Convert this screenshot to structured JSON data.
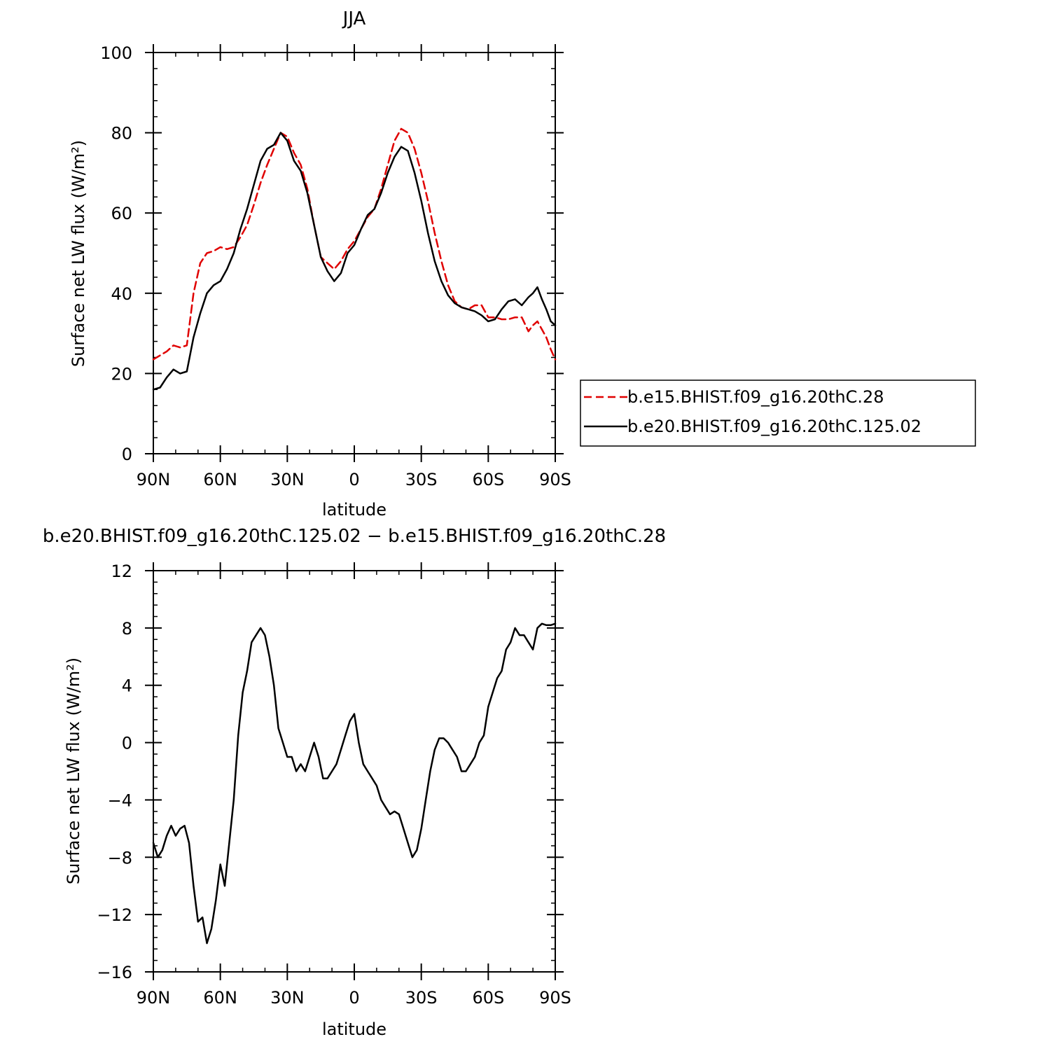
{
  "colors": {
    "series1": "#e00000",
    "series2": "#000000",
    "axis": "#000000"
  },
  "chart_data": [
    {
      "type": "line",
      "title": "JJA",
      "xlabel": "latitude",
      "ylabel": "Surface net LW flux (W/m²)",
      "xlim": [
        90,
        -90
      ],
      "ylim": [
        0,
        100
      ],
      "x_ticks": [
        90,
        60,
        30,
        0,
        -30,
        -60,
        -90
      ],
      "x_tick_labels": [
        "90N",
        "60N",
        "30N",
        "0",
        "30S",
        "60S",
        "90S"
      ],
      "y_ticks": [
        0,
        20,
        40,
        60,
        80,
        100
      ],
      "y_tick_labels": [
        "0",
        "20",
        "40",
        "60",
        "80",
        "100"
      ],
      "legend": {
        "placement": "right",
        "entries": [
          "b.e15.BHIST.f09_g16.20thC.28",
          "b.e20.BHIST.f09_g16.20thC.125.02"
        ]
      },
      "series": [
        {
          "name": "b.e15.BHIST.f09_g16.20thC.28",
          "style": "dashed",
          "color": "#e00000",
          "x": [
            90,
            87,
            84,
            81,
            78,
            75,
            72,
            69,
            66,
            63,
            60,
            57,
            54,
            51,
            48,
            45,
            42,
            39,
            36,
            33,
            30,
            27,
            24,
            21,
            18,
            15,
            12,
            9,
            6,
            3,
            0,
            -3,
            -6,
            -9,
            -12,
            -15,
            -18,
            -21,
            -24,
            -27,
            -30,
            -33,
            -36,
            -39,
            -42,
            -45,
            -48,
            -51,
            -54,
            -57,
            -60,
            -63,
            -66,
            -69,
            -72,
            -75,
            -78,
            -80,
            -82,
            -84,
            -86,
            -88,
            -90
          ],
          "values": [
            23.5,
            24.5,
            25.5,
            27,
            26.5,
            27,
            40,
            47.5,
            50,
            50.5,
            51.5,
            51,
            51.5,
            54,
            57,
            62,
            67.5,
            72,
            76,
            80,
            79,
            75,
            72,
            66,
            57,
            49,
            47.5,
            46,
            48,
            51,
            53,
            56,
            59,
            61,
            66,
            72,
            78,
            81,
            80,
            76,
            70,
            63,
            55,
            48,
            42,
            38,
            36.5,
            36,
            37,
            37,
            34,
            34,
            33.5,
            33.5,
            34,
            34,
            30.5,
            32,
            33,
            31,
            29,
            26,
            23.5
          ]
        },
        {
          "name": "b.e20.BHIST.f09_g16.20thC.125.02",
          "style": "solid",
          "color": "#000000",
          "x": [
            90,
            87,
            84,
            81,
            78,
            75,
            72,
            69,
            66,
            63,
            60,
            57,
            54,
            51,
            48,
            45,
            42,
            39,
            36,
            33,
            30,
            27,
            24,
            21,
            18,
            15,
            12,
            9,
            6,
            3,
            0,
            -3,
            -6,
            -9,
            -12,
            -15,
            -18,
            -21,
            -24,
            -27,
            -30,
            -33,
            -36,
            -39,
            -42,
            -45,
            -48,
            -51,
            -54,
            -57,
            -60,
            -63,
            -66,
            -69,
            -72,
            -75,
            -78,
            -80,
            -82,
            -84,
            -86,
            -88,
            -90
          ],
          "values": [
            16,
            16.5,
            19,
            21,
            20,
            20.5,
            29,
            35,
            40,
            42,
            43,
            46,
            50,
            56,
            61,
            67,
            73,
            76,
            77,
            80,
            78,
            73,
            70.5,
            65,
            57,
            49,
            45.5,
            43,
            45,
            50,
            52,
            56,
            59.5,
            61,
            65,
            70,
            74,
            76.5,
            75.5,
            70,
            63,
            55,
            48,
            43,
            39.5,
            37.5,
            36.5,
            36,
            35.5,
            34.5,
            33,
            33.5,
            36,
            38,
            38.5,
            37,
            39,
            40,
            41.5,
            38.5,
            36,
            33,
            32
          ]
        }
      ]
    },
    {
      "type": "line",
      "title": "b.e20.BHIST.f09_g16.20thC.125.02 − b.e15.BHIST.f09_g16.20thC.28",
      "xlabel": "latitude",
      "ylabel": "Surface net LW flux (W/m²)",
      "xlim": [
        90,
        -90
      ],
      "ylim": [
        -16,
        12
      ],
      "x_ticks": [
        90,
        60,
        30,
        0,
        -30,
        -60,
        -90
      ],
      "x_tick_labels": [
        "90N",
        "60N",
        "30N",
        "0",
        "30S",
        "60S",
        "90S"
      ],
      "y_ticks": [
        -16,
        -12,
        -8,
        -4,
        0,
        4,
        8,
        12
      ],
      "y_tick_labels": [
        "−16",
        "−12",
        "−8",
        "−4",
        "0",
        "4",
        "8",
        "12"
      ],
      "series": [
        {
          "name": "b.e20.BHIST.f09_g16.20thC.125.02 − b.e15.BHIST.f09_g16.20thC.28",
          "style": "solid",
          "color": "#000000",
          "x": [
            90,
            88,
            86,
            84,
            82,
            80,
            78,
            76,
            74,
            72,
            70,
            68,
            66,
            64,
            62,
            60,
            58,
            56,
            54,
            52,
            50,
            48,
            46,
            44,
            42,
            40,
            38,
            36,
            34,
            32,
            30,
            28,
            26,
            24,
            22,
            20,
            18,
            16,
            14,
            12,
            10,
            8,
            6,
            4,
            2,
            0,
            -2,
            -4,
            -6,
            -8,
            -10,
            -12,
            -14,
            -16,
            -18,
            -20,
            -22,
            -24,
            -26,
            -28,
            -30,
            -32,
            -34,
            -36,
            -38,
            -40,
            -42,
            -44,
            -46,
            -48,
            -50,
            -52,
            -54,
            -56,
            -58,
            -60,
            -62,
            -64,
            -66,
            -68,
            -70,
            -72,
            -74,
            -76,
            -78,
            -80,
            -82,
            -84,
            -86,
            -88,
            -90
          ],
          "values": [
            -7,
            -8,
            -7.5,
            -6.5,
            -5.8,
            -6.5,
            -6,
            -5.8,
            -7,
            -10,
            -12.5,
            -12.2,
            -14,
            -13,
            -11,
            -8.5,
            -10,
            -7,
            -4,
            0.5,
            3.5,
            5,
            7,
            7.5,
            8,
            7.5,
            6,
            4,
            1,
            0,
            -1,
            -1,
            -2,
            -1.5,
            -2,
            -1,
            0,
            -1,
            -2.5,
            -2.5,
            -2,
            -1.5,
            -0.5,
            0.5,
            1.5,
            2,
            0,
            -1.5,
            -2,
            -2.5,
            -3,
            -4,
            -4.5,
            -5,
            -4.8,
            -5,
            -6,
            -7,
            -8,
            -7.5,
            -6,
            -4,
            -2,
            -0.5,
            0.3,
            0.3,
            0,
            -0.5,
            -1,
            -2,
            -2,
            -1.5,
            -1,
            0,
            0.5,
            2.5,
            3.5,
            4.5,
            5,
            6.5,
            7,
            8,
            7.5,
            7.5,
            7,
            6.5,
            8,
            8.3,
            8.2,
            8.2,
            8.3
          ]
        }
      ]
    }
  ]
}
